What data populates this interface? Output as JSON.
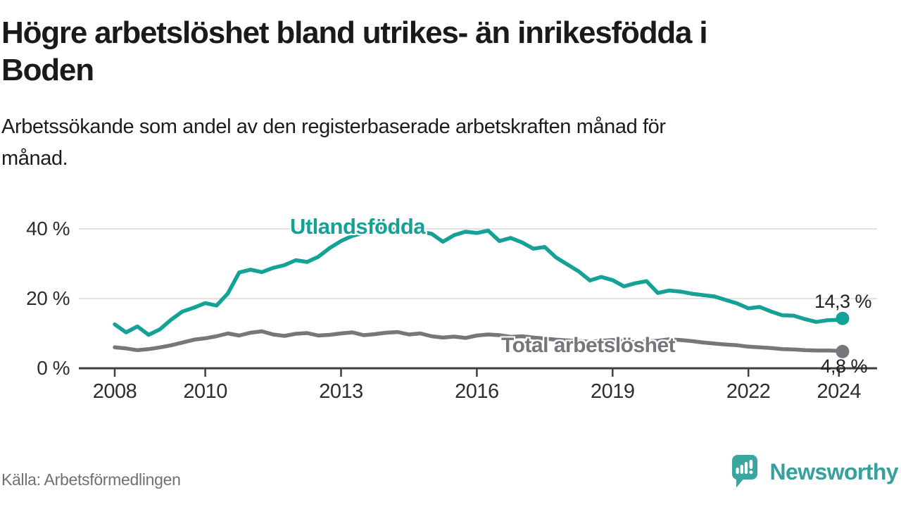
{
  "header": {
    "title": "Högre arbetslöshet bland utrikes- än inrikesfödda i Boden",
    "title_lines": [
      "Högre arbetslöshet bland utrikes- än inrikesfödda i",
      "Boden"
    ],
    "subtitle": "Arbetssökande som andel av den registerbaserade arbetskraften månad för månad.",
    "subtitle_lines": [
      "Arbetssökande som andel av den registerbaserade arbetskraften månad för",
      "månad."
    ]
  },
  "footer": {
    "source": "Källa: Arbetsförmedlingen",
    "brand_name": "Newsworthy",
    "brand_color": "#3ba5a1"
  },
  "colors": {
    "foreign_born_line": "#15a296",
    "total_line": "#77777b",
    "grid": "#d9d9d9",
    "axis": "#3f3f3f",
    "annotation_text": "#222222"
  },
  "chart_data": {
    "type": "line",
    "title": "Högre arbetslöshet bland utrikes- än inrikesfödda i Boden",
    "xlabel": "",
    "ylabel": "",
    "x_unit": "decimal_year",
    "ylim": [
      0,
      44
    ],
    "grid": "horizontal",
    "y_ticks": [
      {
        "value": 0,
        "label": "0 %"
      },
      {
        "value": 20,
        "label": "20 %"
      },
      {
        "value": 40,
        "label": "40 %"
      }
    ],
    "x_ticks": [
      {
        "value": 2008,
        "label": "2008"
      },
      {
        "value": 2010,
        "label": "2010"
      },
      {
        "value": 2013,
        "label": "2013"
      },
      {
        "value": 2016,
        "label": "2016"
      },
      {
        "value": 2019,
        "label": "2019"
      },
      {
        "value": 2022,
        "label": "2022"
      },
      {
        "value": 2024,
        "label": "2024"
      }
    ],
    "x": [
      2008.0,
      2008.25,
      2008.5,
      2008.75,
      2009.0,
      2009.25,
      2009.5,
      2009.75,
      2010.0,
      2010.25,
      2010.5,
      2010.75,
      2011.0,
      2011.25,
      2011.5,
      2011.75,
      2012.0,
      2012.25,
      2012.5,
      2012.75,
      2013.0,
      2013.25,
      2013.5,
      2013.75,
      2014.0,
      2014.25,
      2014.5,
      2014.75,
      2015.0,
      2015.25,
      2015.5,
      2015.75,
      2016.0,
      2016.25,
      2016.5,
      2016.75,
      2017.0,
      2017.25,
      2017.5,
      2017.75,
      2018.0,
      2018.25,
      2018.5,
      2018.75,
      2019.0,
      2019.25,
      2019.5,
      2019.75,
      2020.0,
      2020.25,
      2020.5,
      2020.75,
      2021.0,
      2021.25,
      2021.5,
      2021.75,
      2022.0,
      2022.25,
      2022.5,
      2022.75,
      2023.0,
      2023.25,
      2023.5,
      2023.75,
      2024.0,
      2024.08
    ],
    "series": [
      {
        "name": "Utlandsfödda",
        "color": "#15a296",
        "end_label": "14,3 %",
        "end_value": 14.3,
        "values": [
          12.6,
          10.3,
          12.0,
          9.6,
          11.2,
          14.0,
          16.3,
          17.4,
          18.7,
          18.0,
          21.5,
          27.5,
          28.3,
          27.6,
          28.8,
          29.6,
          31.0,
          30.5,
          32.0,
          34.5,
          36.5,
          38.0,
          38.8,
          39.8,
          40.3,
          39.5,
          38.8,
          39.2,
          38.6,
          36.3,
          38.2,
          39.2,
          38.8,
          39.5,
          36.5,
          37.4,
          36.1,
          34.3,
          34.8,
          31.8,
          29.8,
          27.8,
          25.2,
          26.2,
          25.3,
          23.5,
          24.4,
          25.0,
          21.6,
          22.3,
          22.0,
          21.4,
          21.0,
          20.6,
          19.6,
          18.6,
          17.2,
          17.6,
          16.3,
          15.2,
          15.1,
          14.1,
          13.3,
          13.8,
          13.9,
          14.3
        ]
      },
      {
        "name": "Total arbetslöshet",
        "color": "#77777b",
        "end_label": "4,8 %",
        "end_value": 4.8,
        "values": [
          6.0,
          5.7,
          5.2,
          5.5,
          6.0,
          6.6,
          7.4,
          8.2,
          8.6,
          9.2,
          10.0,
          9.4,
          10.2,
          10.6,
          9.7,
          9.3,
          9.9,
          10.1,
          9.4,
          9.6,
          10.0,
          10.3,
          9.5,
          9.8,
          10.2,
          10.4,
          9.7,
          10.0,
          9.2,
          8.8,
          9.1,
          8.7,
          9.4,
          9.7,
          9.5,
          9.0,
          9.2,
          8.8,
          8.5,
          8.2,
          8.0,
          7.8,
          7.6,
          7.9,
          8.1,
          7.7,
          7.5,
          7.7,
          7.9,
          8.3,
          8.1,
          7.8,
          7.4,
          7.1,
          6.8,
          6.6,
          6.2,
          6.0,
          5.8,
          5.5,
          5.4,
          5.2,
          5.1,
          5.1,
          5.0,
          4.8
        ]
      }
    ]
  }
}
